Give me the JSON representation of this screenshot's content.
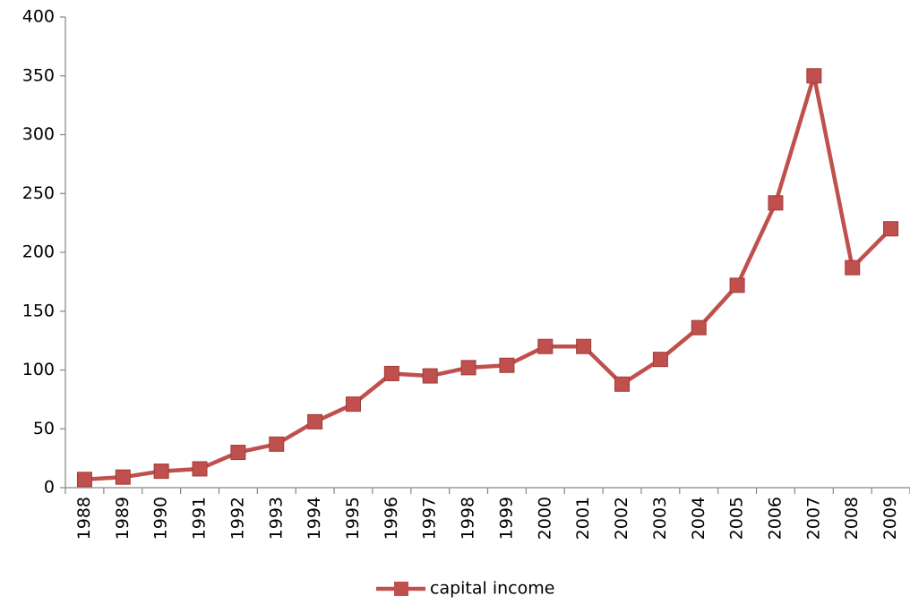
{
  "chart_data": {
    "type": "line",
    "categories": [
      "1988",
      "1989",
      "1990",
      "1991",
      "1992",
      "1993",
      "1994",
      "1995",
      "1996",
      "1997",
      "1998",
      "1999",
      "2000",
      "2001",
      "2002",
      "2003",
      "2004",
      "2005",
      "2006",
      "2007",
      "2008",
      "2009"
    ],
    "series": [
      {
        "name": "capital income",
        "color": "#c0504d",
        "values": [
          7,
          9,
          14,
          16,
          30,
          37,
          56,
          71,
          97,
          95,
          102,
          104,
          120,
          120,
          88,
          109,
          136,
          172,
          242,
          350,
          187,
          220
        ]
      }
    ],
    "ylim": [
      0,
      400
    ],
    "yticks": [
      0,
      50,
      100,
      150,
      200,
      250,
      300,
      350,
      400
    ],
    "grid": false,
    "legend": "bottom"
  }
}
